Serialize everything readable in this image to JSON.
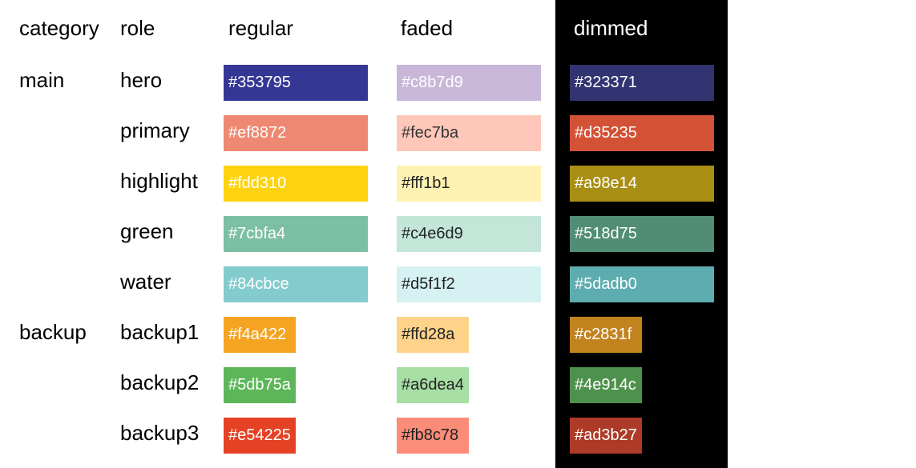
{
  "headers": {
    "category": "category",
    "role": "role",
    "regular": "regular",
    "faded": "faded",
    "dimmed": "dimmed"
  },
  "rows": [
    {
      "category": "main",
      "role": "hero",
      "regular": "#353795",
      "faded": "#c8b7d9",
      "dimmed": "#323371",
      "regular_text": "#ffffff",
      "faded_text": "#ffffff",
      "dimmed_text": "#ffffff"
    },
    {
      "category": "",
      "role": "primary",
      "regular": "#ef8872",
      "faded": "#fec7ba",
      "dimmed": "#d35235",
      "regular_text": "#ffffff",
      "faded_text": "#333333",
      "dimmed_text": "#ffffff"
    },
    {
      "category": "",
      "role": "highlight",
      "regular": "#fdd310",
      "faded": "#fff1b1",
      "dimmed": "#a98e14",
      "regular_text": "#ffffff",
      "faded_text": "#222222",
      "dimmed_text": "#ffffff"
    },
    {
      "category": "",
      "role": "green",
      "regular": "#7cbfa4",
      "faded": "#c4e6d9",
      "dimmed": "#518d75",
      "regular_text": "#ffffff",
      "faded_text": "#222222",
      "dimmed_text": "#ffffff"
    },
    {
      "category": "",
      "role": "water",
      "regular": "#84cbce",
      "faded": "#d5f1f2",
      "dimmed": "#5dadb0",
      "regular_text": "#ffffff",
      "faded_text": "#222222",
      "dimmed_text": "#ffffff"
    },
    {
      "category": "backup",
      "role": "backup1",
      "regular": "#f4a422",
      "faded": "#ffd28a",
      "dimmed": "#c2831f",
      "regular_text": "#ffffff",
      "faded_text": "#222222",
      "dimmed_text": "#ffffff"
    },
    {
      "category": "",
      "role": "backup2",
      "regular": "#5db75a",
      "faded": "#a6dea4",
      "dimmed": "#4e914c",
      "regular_text": "#ffffff",
      "faded_text": "#222222",
      "dimmed_text": "#ffffff"
    },
    {
      "category": "",
      "role": "backup3",
      "regular": "#e54225",
      "faded": "#fb8c78",
      "dimmed": "#ad3b27",
      "regular_text": "#ffffff",
      "faded_text": "#222222",
      "dimmed_text": "#ffffff"
    }
  ]
}
